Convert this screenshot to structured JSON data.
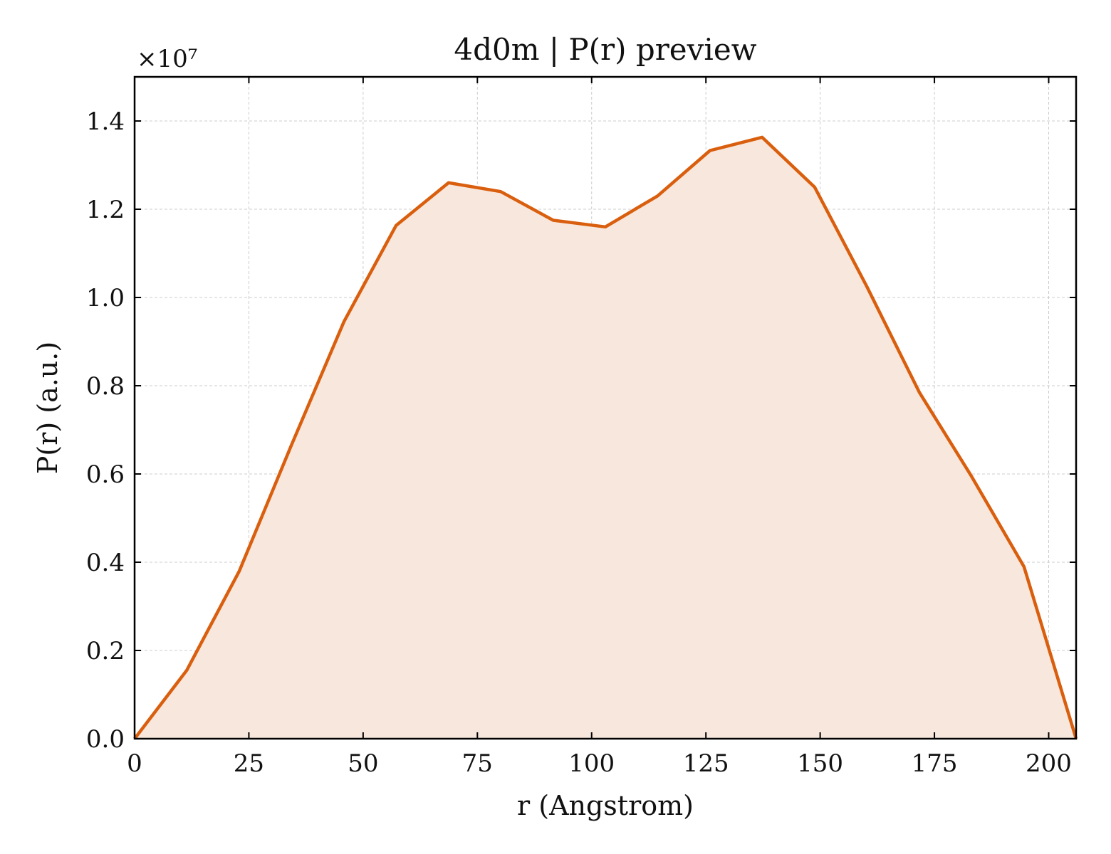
{
  "chart_data": {
    "type": "area",
    "title": "4d0m | P(r) preview",
    "xlabel": "r (Angstrom)",
    "ylabel": "P(r) (a.u.)",
    "y_multiplier": "×10⁷",
    "y_scale_exponent": 7,
    "xlim": [
      0,
      206
    ],
    "ylim": [
      0,
      1.5
    ],
    "xticks": [
      0,
      25,
      50,
      75,
      100,
      125,
      150,
      175,
      200
    ],
    "xtick_labels": [
      "0",
      "25",
      "50",
      "75",
      "100",
      "125",
      "150",
      "175",
      "200"
    ],
    "yticks": [
      0.0,
      0.2,
      0.4,
      0.6,
      0.8,
      1.0,
      1.2,
      1.4
    ],
    "ytick_labels": [
      "0.0",
      "0.2",
      "0.4",
      "0.6",
      "0.8",
      "1.0",
      "1.2",
      "1.4"
    ],
    "grid": true,
    "series": [
      {
        "line_color": "#d95f0e",
        "fill_color": "#f8e7dc",
        "x": [
          0,
          11.4,
          22.9,
          34.3,
          45.8,
          57.2,
          68.7,
          80.1,
          91.6,
          103.0,
          114.4,
          125.9,
          137.3,
          148.8,
          160.2,
          171.7,
          183.1,
          194.6,
          206.0
        ],
        "y": [
          0.0,
          0.155,
          0.38,
          0.665,
          0.945,
          1.163,
          1.26,
          1.24,
          1.175,
          1.16,
          1.23,
          1.333,
          1.363,
          1.25,
          1.025,
          0.785,
          0.595,
          0.39,
          0.0
        ]
      }
    ]
  }
}
